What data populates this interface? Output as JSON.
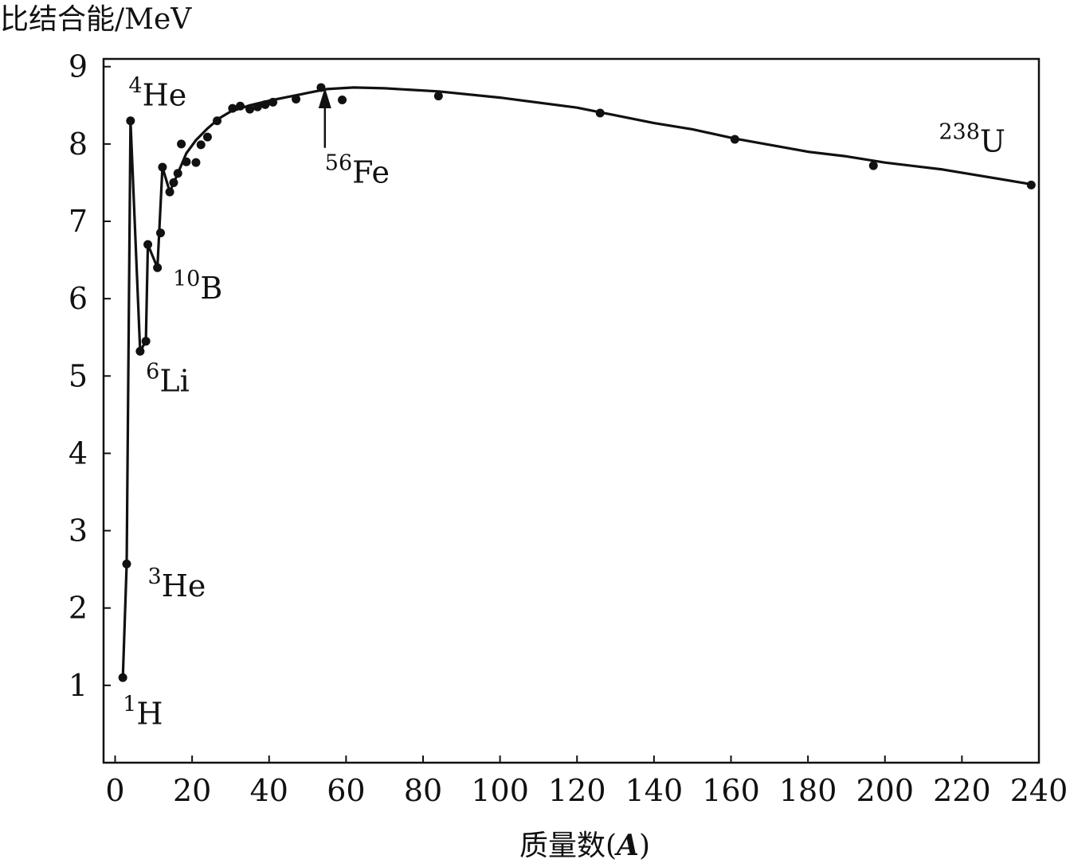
{
  "chart_data": {
    "type": "scatter",
    "ylabel": "比结合能/MeV",
    "xlabel_prefix": "质量数(",
    "xlabel_var": "A",
    "xlabel_suffix": ")",
    "xlim": [
      -3,
      240
    ],
    "ylim": [
      0,
      9.1
    ],
    "x_ticks": [
      0,
      20,
      40,
      60,
      80,
      100,
      120,
      140,
      160,
      180,
      200,
      220,
      240
    ],
    "y_ticks": [
      1,
      2,
      3,
      4,
      5,
      6,
      7,
      8,
      9
    ],
    "grid": false,
    "colors": {
      "line": "#111111",
      "points": "#111111",
      "axes": "#111111"
    },
    "points": [
      {
        "x": 2,
        "y": 1.1
      },
      {
        "x": 3,
        "y": 2.57
      },
      {
        "x": 4,
        "y": 8.3
      },
      {
        "x": 6.5,
        "y": 5.32
      },
      {
        "x": 8,
        "y": 5.45
      },
      {
        "x": 8.5,
        "y": 6.7
      },
      {
        "x": 11,
        "y": 6.4
      },
      {
        "x": 11.8,
        "y": 6.85
      },
      {
        "x": 12.3,
        "y": 7.7
      },
      {
        "x": 14.2,
        "y": 7.38
      },
      {
        "x": 15.2,
        "y": 7.5
      },
      {
        "x": 16.3,
        "y": 7.62
      },
      {
        "x": 17.2,
        "y": 8.0
      },
      {
        "x": 18.5,
        "y": 7.77
      },
      {
        "x": 21,
        "y": 7.76
      },
      {
        "x": 22.3,
        "y": 7.99
      },
      {
        "x": 24,
        "y": 8.09
      },
      {
        "x": 26.5,
        "y": 8.3
      },
      {
        "x": 30.5,
        "y": 8.46
      },
      {
        "x": 32.5,
        "y": 8.49
      },
      {
        "x": 35,
        "y": 8.45
      },
      {
        "x": 37,
        "y": 8.48
      },
      {
        "x": 39,
        "y": 8.51
      },
      {
        "x": 41,
        "y": 8.54
      },
      {
        "x": 47,
        "y": 8.58
      },
      {
        "x": 53.5,
        "y": 8.73
      },
      {
        "x": 59,
        "y": 8.57
      },
      {
        "x": 84,
        "y": 8.62
      },
      {
        "x": 126,
        "y": 8.4
      },
      {
        "x": 161,
        "y": 8.06
      },
      {
        "x": 197,
        "y": 7.72
      },
      {
        "x": 238,
        "y": 7.47
      }
    ],
    "curve": [
      {
        "x": 2,
        "y": 1.1
      },
      {
        "x": 3,
        "y": 2.57
      },
      {
        "x": 4,
        "y": 8.3
      },
      {
        "x": 6.5,
        "y": 5.32
      },
      {
        "x": 8,
        "y": 5.45
      },
      {
        "x": 8.5,
        "y": 6.7
      },
      {
        "x": 11,
        "y": 6.4
      },
      {
        "x": 12.3,
        "y": 7.7
      },
      {
        "x": 14.2,
        "y": 7.38
      },
      {
        "x": 16.3,
        "y": 7.62
      },
      {
        "x": 18.5,
        "y": 7.88
      },
      {
        "x": 21,
        "y": 8.05
      },
      {
        "x": 24,
        "y": 8.2
      },
      {
        "x": 27,
        "y": 8.33
      },
      {
        "x": 30,
        "y": 8.42
      },
      {
        "x": 35,
        "y": 8.5
      },
      {
        "x": 40,
        "y": 8.56
      },
      {
        "x": 47,
        "y": 8.63
      },
      {
        "x": 55,
        "y": 8.71
      },
      {
        "x": 62,
        "y": 8.73
      },
      {
        "x": 70,
        "y": 8.72
      },
      {
        "x": 84,
        "y": 8.68
      },
      {
        "x": 100,
        "y": 8.6
      },
      {
        "x": 120,
        "y": 8.47
      },
      {
        "x": 140,
        "y": 8.27
      },
      {
        "x": 150,
        "y": 8.19
      },
      {
        "x": 161,
        "y": 8.07
      },
      {
        "x": 180,
        "y": 7.9
      },
      {
        "x": 190,
        "y": 7.84
      },
      {
        "x": 200,
        "y": 7.76
      },
      {
        "x": 215,
        "y": 7.67
      },
      {
        "x": 238,
        "y": 7.48
      }
    ],
    "annotations": [
      {
        "sup": "1",
        "base": "H",
        "x": 2,
        "y": 0.5
      },
      {
        "sup": "3",
        "base": "He",
        "x": 8.5,
        "y": 2.15
      },
      {
        "sup": "4",
        "base": "He",
        "x": 3.5,
        "y": 8.5
      },
      {
        "sup": "6",
        "base": "Li",
        "x": 8,
        "y": 4.8
      },
      {
        "sup": "10",
        "base": "B",
        "x": 15,
        "y": 6.0
      },
      {
        "sup": "56",
        "base": "Fe",
        "x": 54.5,
        "y": 7.5
      },
      {
        "sup": "238",
        "base": "U",
        "x": 214,
        "y": 7.9
      }
    ],
    "arrow": {
      "label": "56Fe",
      "x": 54.5,
      "y_from": 7.95,
      "y_to": 8.73
    }
  }
}
